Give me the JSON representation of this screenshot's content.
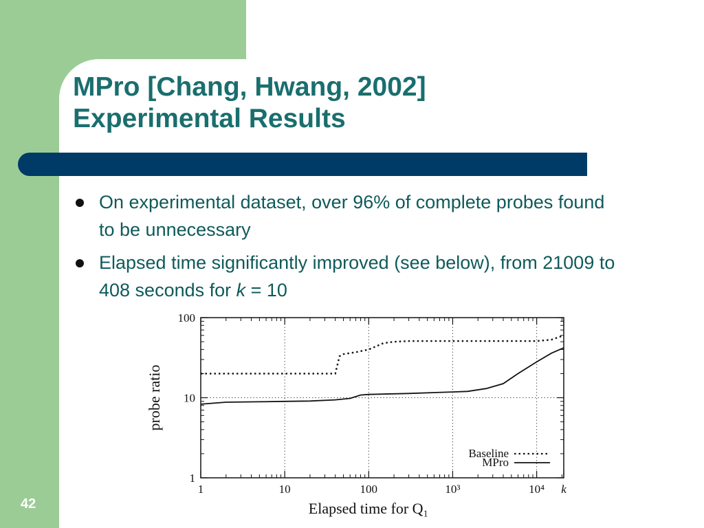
{
  "slide": {
    "title_line1": "MPro [Chang, Hwang, 2002]",
    "title_line2": "Experimental Results",
    "bullets": [
      "On experimental dataset, over 96% of complete probes found to be unnecessary",
      "Elapsed time significantly improved (see below), from 21009 to 408 seconds for"
    ],
    "bullet2_var": "k",
    "bullet2_tail": " = 10",
    "page_number": "42"
  },
  "colors": {
    "band": "#9ccc96",
    "title": "#1a6e6e",
    "bar": "#003a66",
    "body_text": "#0f5a5a"
  },
  "chart_data": {
    "type": "line",
    "xscale": "log",
    "yscale": "log",
    "xlim": [
      1,
      21009
    ],
    "ylim": [
      1,
      100
    ],
    "xticks": [
      "1",
      "10",
      "100",
      "10³",
      "10⁴",
      "k"
    ],
    "yticks": [
      "1",
      "10",
      "100"
    ],
    "xlabel": "Elapsed time for Q₁",
    "ylabel": "probe ratio",
    "grid": "dotted vertical and horizontal at decades",
    "legend_position": "bottom-right",
    "series": [
      {
        "name": "Baseline",
        "style": "dotted",
        "x": [
          1,
          10,
          30,
          40,
          45,
          50,
          70,
          100,
          150,
          200,
          300,
          1000,
          3000,
          10000,
          15000,
          21009
        ],
        "y": [
          20,
          20,
          20,
          20,
          33,
          35,
          37,
          40,
          48,
          50,
          51,
          51,
          51,
          51,
          53,
          60
        ]
      },
      {
        "name": "MPro",
        "style": "solid",
        "x": [
          1,
          2,
          5,
          10,
          20,
          40,
          60,
          80,
          100,
          300,
          1000,
          1500,
          2500,
          4000,
          6000,
          10000,
          15000,
          21009
        ],
        "y": [
          8.3,
          8.8,
          8.9,
          9.0,
          9.1,
          9.4,
          9.8,
          10.8,
          11.0,
          11.3,
          11.8,
          12.0,
          13.0,
          15.0,
          20.0,
          28.0,
          36.0,
          42.0
        ]
      }
    ]
  }
}
